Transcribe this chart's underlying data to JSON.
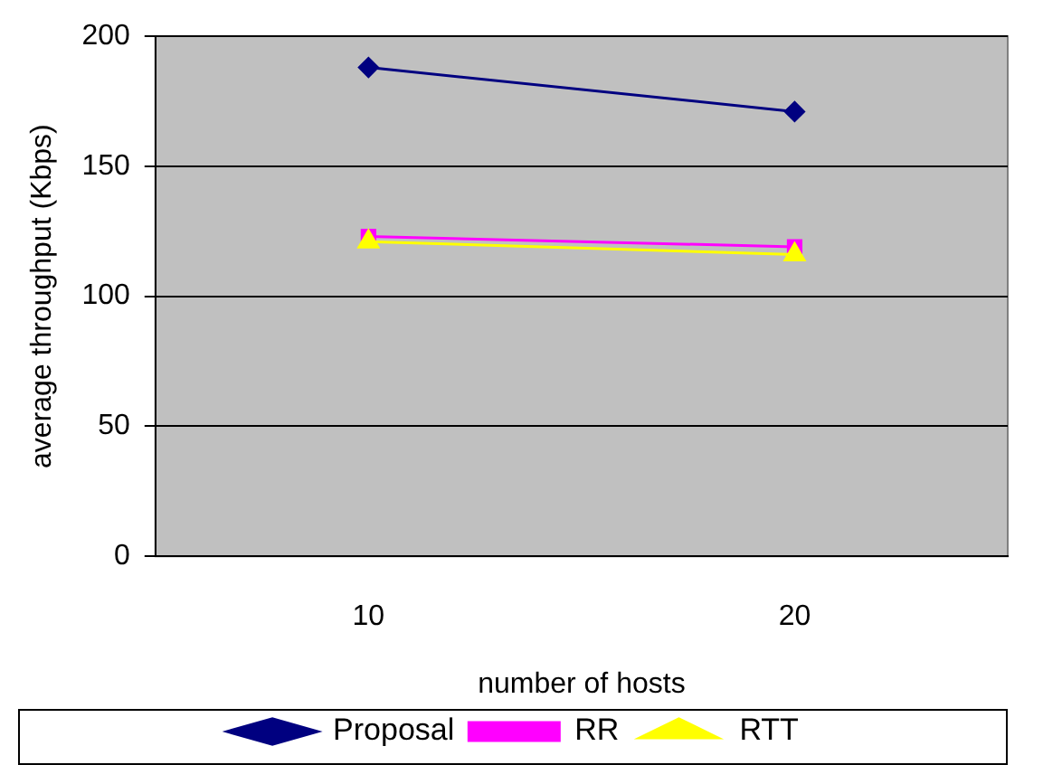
{
  "chart_data": {
    "type": "line",
    "xlabel": "number of hosts",
    "ylabel": "average throughput (Kbps)",
    "categories": [
      "10",
      "20"
    ],
    "series": [
      {
        "name": "Proposal",
        "color": "#000080",
        "marker": "diamond",
        "values": [
          188,
          171
        ]
      },
      {
        "name": "RR",
        "color": "#ff00ff",
        "marker": "square",
        "values": [
          123,
          119
        ]
      },
      {
        "name": "RTT",
        "color": "#ffff00",
        "marker": "triangle",
        "values": [
          121,
          116
        ]
      }
    ],
    "ylim": [
      0,
      200
    ],
    "yticks": [
      0,
      50,
      100,
      150,
      200
    ],
    "grid": "y",
    "legend": "bottom"
  }
}
